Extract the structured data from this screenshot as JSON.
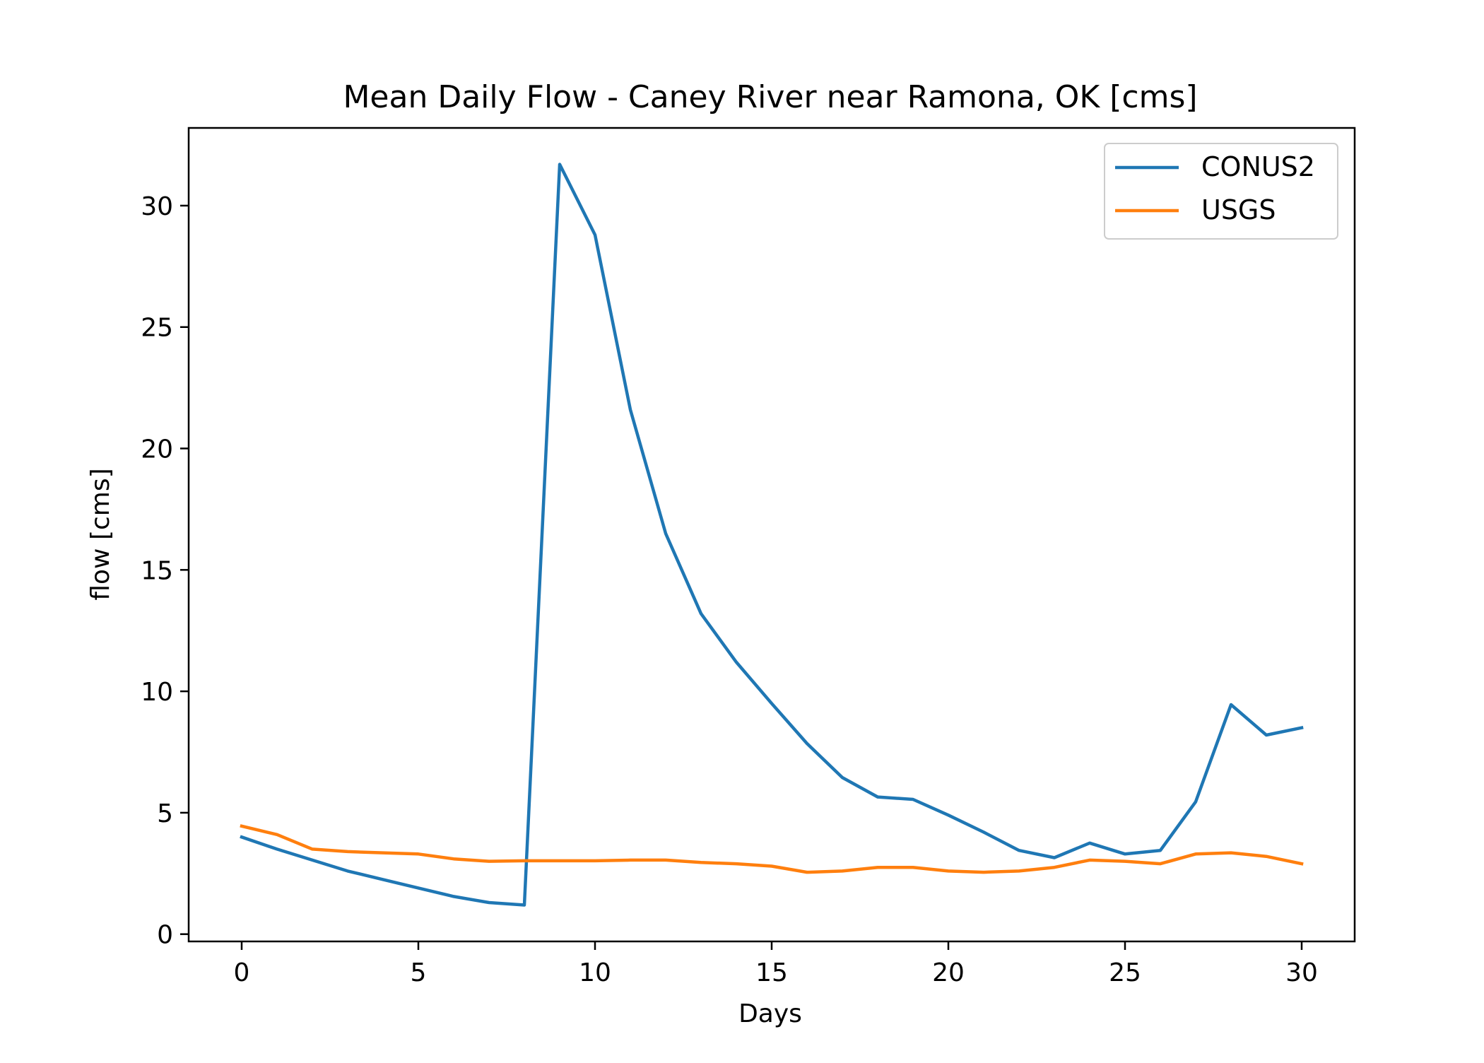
{
  "chart_data": {
    "type": "line",
    "title": "Mean Daily Flow - Caney River near Ramona, OK [cms]",
    "xlabel": "Days",
    "ylabel": "flow [cms]",
    "xlim": [
      -1.5,
      31.5
    ],
    "ylim": [
      -0.3,
      33.2
    ],
    "xticks": [
      0,
      5,
      10,
      15,
      20,
      25,
      30
    ],
    "xtick_labels": [
      "0",
      "5",
      "10",
      "15",
      "20",
      "25",
      "30"
    ],
    "yticks": [
      0,
      5,
      10,
      15,
      20,
      25,
      30
    ],
    "ytick_labels": [
      "0",
      "5",
      "10",
      "15",
      "20",
      "25",
      "30"
    ],
    "grid": false,
    "legend_position": "top-right",
    "x": [
      0,
      1,
      2,
      3,
      4,
      5,
      6,
      7,
      8,
      9,
      10,
      11,
      12,
      13,
      14,
      15,
      16,
      17,
      18,
      19,
      20,
      21,
      22,
      23,
      24,
      25,
      26,
      27,
      28,
      29,
      30
    ],
    "series": [
      {
        "name": "CONUS2",
        "color": "#1f77b4",
        "values": [
          4.0,
          3.5,
          3.05,
          2.6,
          2.25,
          1.9,
          1.55,
          1.3,
          1.2,
          31.7,
          28.8,
          21.6,
          16.5,
          13.2,
          11.2,
          9.5,
          7.85,
          6.45,
          5.65,
          5.55,
          4.9,
          4.2,
          3.45,
          3.15,
          3.75,
          3.3,
          3.45,
          5.45,
          9.45,
          8.2,
          8.5
        ]
      },
      {
        "name": "USGS",
        "color": "#ff7f0e",
        "values": [
          4.45,
          4.1,
          3.5,
          3.4,
          3.35,
          3.3,
          3.1,
          3.0,
          3.02,
          3.02,
          3.02,
          3.05,
          3.05,
          2.95,
          2.9,
          2.8,
          2.55,
          2.6,
          2.75,
          2.75,
          2.6,
          2.55,
          2.6,
          2.75,
          3.05,
          3.0,
          2.9,
          3.3,
          3.35,
          3.2,
          2.9
        ]
      }
    ]
  }
}
